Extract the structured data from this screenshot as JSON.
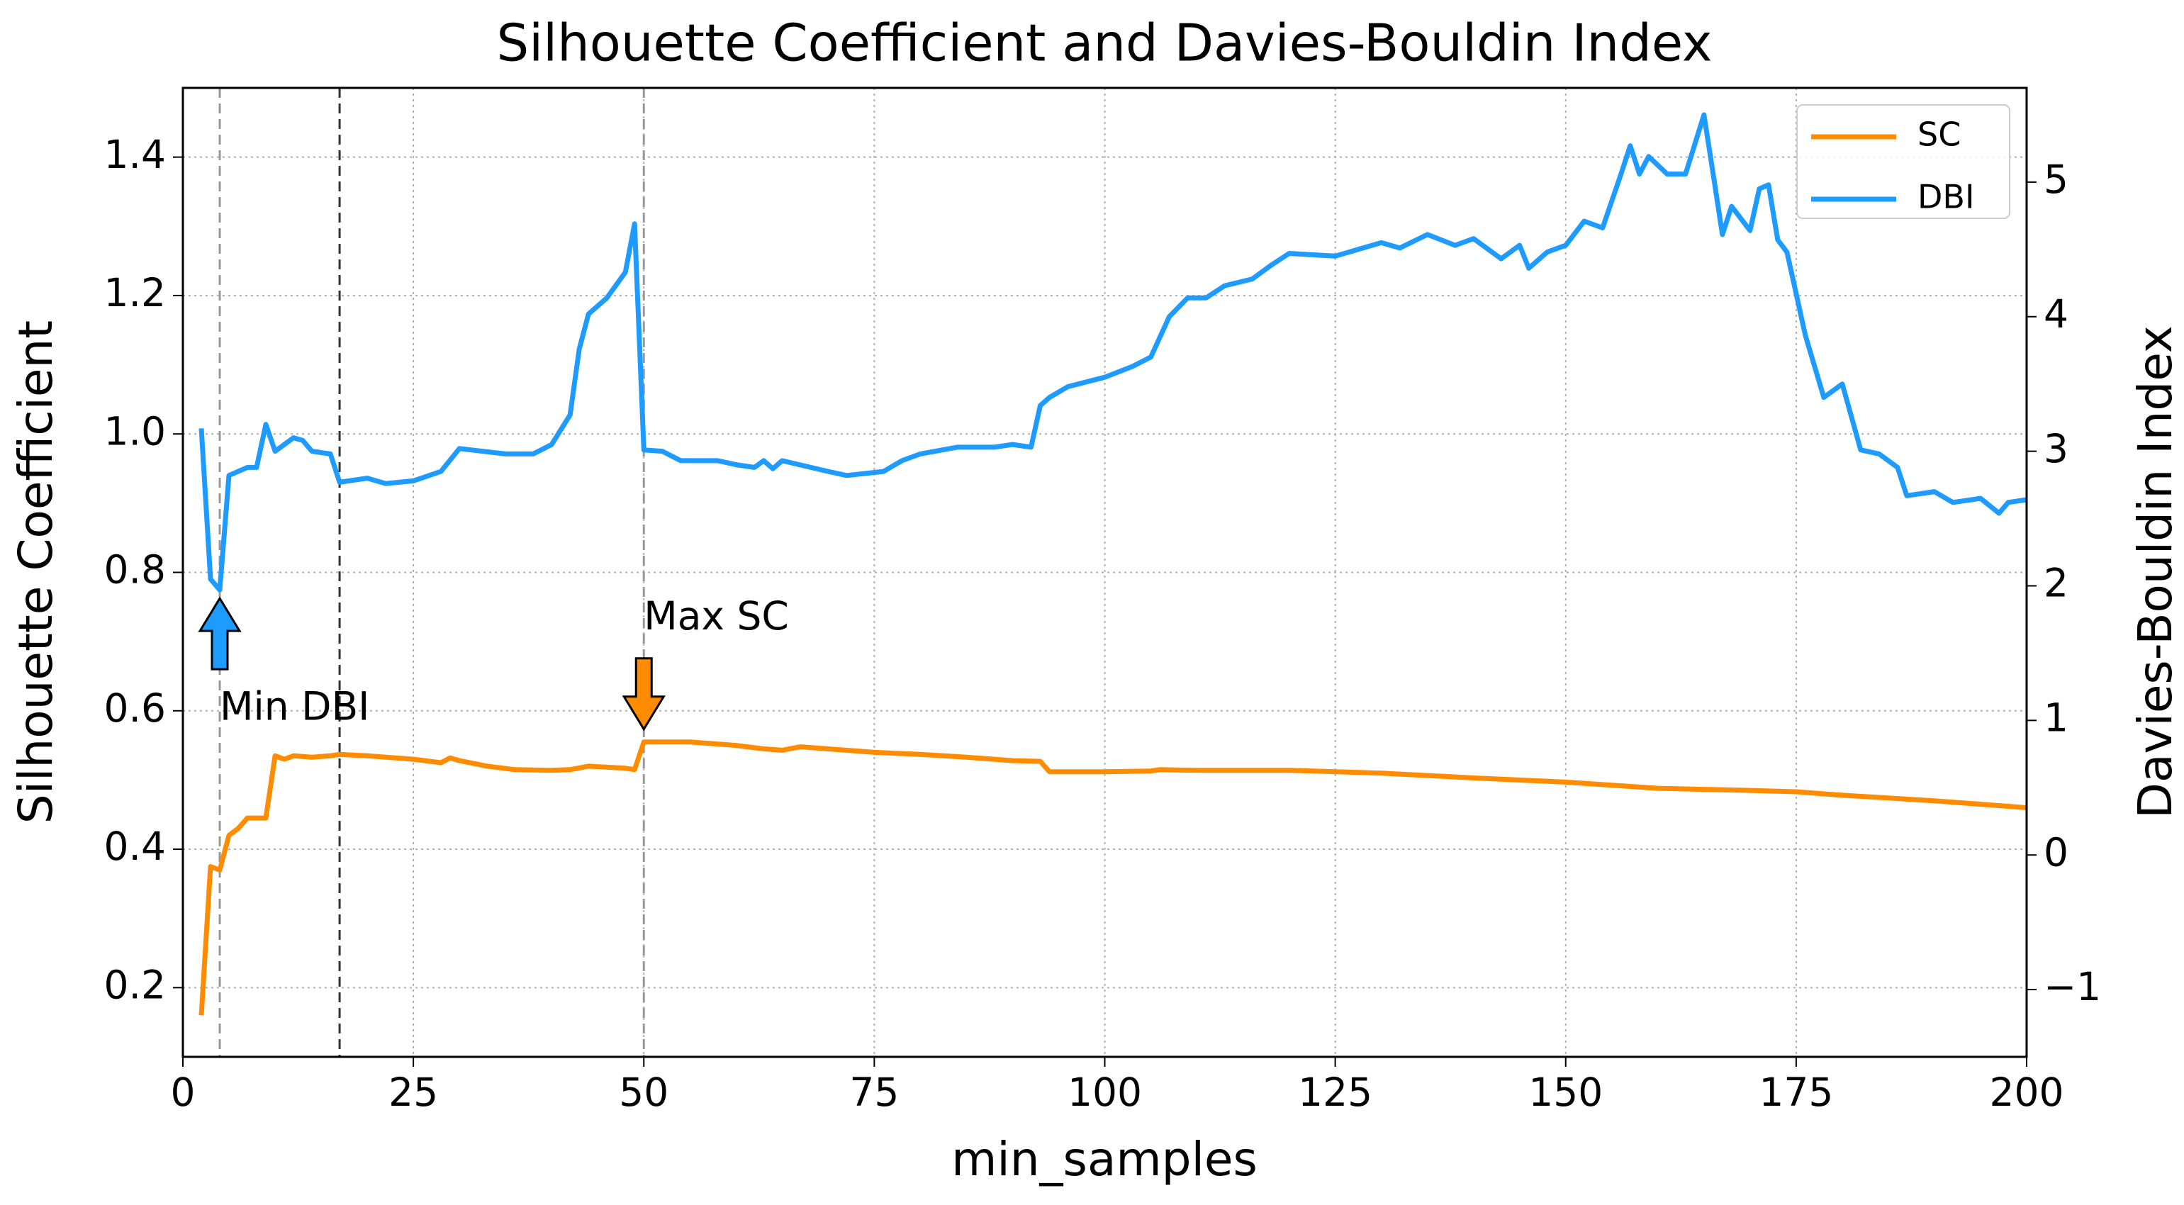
{
  "chart_data": {
    "type": "line",
    "title": "Silhouette Coefficient and Davies-Bouldin Index",
    "x_label": "min_samples",
    "y_label": "Silhouette Coefficient",
    "y2_label": "Davies-Bouldin Index",
    "xlim": [
      0,
      200
    ],
    "xticks": [
      0,
      25,
      50,
      75,
      100,
      125,
      150,
      175,
      200
    ],
    "ylim": [
      0.1,
      1.5
    ],
    "yticks": [
      0.2,
      0.4,
      0.6,
      0.8,
      {
        "value": 1,
        "label": "1.0"
      },
      1.2,
      1.4
    ],
    "y2lim": [
      -1.5,
      5.7
    ],
    "y2ticks": [
      {
        "value": -1,
        "label": "−1"
      },
      0,
      1,
      2,
      3,
      4,
      5
    ],
    "grid": true,
    "legend": "upper right",
    "series": [
      {
        "name": "SC",
        "color": "#ff8c00",
        "axis": "y",
        "x": [
          2,
          3,
          4,
          5,
          6,
          7,
          8,
          9,
          10,
          11,
          12,
          14,
          16,
          17,
          20,
          25,
          28,
          29,
          30,
          33,
          36,
          40,
          42,
          44,
          48,
          49,
          50,
          55,
          60,
          63,
          65,
          67,
          70,
          75,
          80,
          85,
          90,
          93,
          94,
          100,
          105,
          106,
          110,
          120,
          130,
          140,
          150,
          160,
          170,
          175,
          180,
          190,
          200
        ],
        "values": [
          0.16,
          0.375,
          0.37,
          0.42,
          0.43,
          0.445,
          0.445,
          0.445,
          0.535,
          0.53,
          0.535,
          0.533,
          0.535,
          0.537,
          0.535,
          0.53,
          0.525,
          0.532,
          0.528,
          0.52,
          0.515,
          0.514,
          0.515,
          0.52,
          0.517,
          0.515,
          0.555,
          0.555,
          0.55,
          0.545,
          0.543,
          0.548,
          0.545,
          0.54,
          0.537,
          0.533,
          0.528,
          0.527,
          0.512,
          0.512,
          0.513,
          0.515,
          0.514,
          0.514,
          0.51,
          0.503,
          0.497,
          0.488,
          0.485,
          0.483,
          0.478,
          0.47,
          0.46
        ]
      },
      {
        "name": "DBI",
        "color": "#1e9bff",
        "axis": "y2",
        "x": [
          2,
          3,
          4,
          5,
          6,
          7,
          8,
          9,
          10,
          12,
          13,
          14,
          16,
          17,
          20,
          22,
          25,
          28,
          30,
          35,
          38,
          40,
          42,
          43,
          44,
          46,
          48,
          49,
          50,
          52,
          54,
          58,
          60,
          62,
          63,
          64,
          65,
          70,
          72,
          76,
          78,
          80,
          84,
          88,
          90,
          92,
          93,
          94,
          96,
          100,
          103,
          105,
          107,
          109,
          111,
          113,
          116,
          118,
          120,
          125,
          128,
          130,
          132,
          135,
          138,
          140,
          143,
          145,
          146,
          148,
          150,
          152,
          154,
          156,
          157,
          158,
          159,
          161,
          163,
          165,
          166,
          167,
          168,
          170,
          171,
          172,
          173,
          174,
          176,
          178,
          180,
          182,
          184,
          186,
          187,
          190,
          192,
          195,
          197,
          198,
          200
        ],
        "values": [
          3.17,
          2.05,
          1.97,
          2.82,
          2.85,
          2.88,
          2.88,
          3.2,
          3.0,
          3.1,
          3.08,
          3.0,
          2.98,
          2.77,
          2.8,
          2.76,
          2.78,
          2.85,
          3.02,
          2.98,
          2.98,
          3.05,
          3.27,
          3.76,
          4.02,
          4.14,
          4.33,
          4.69,
          3.01,
          3.0,
          2.93,
          2.93,
          2.9,
          2.88,
          2.93,
          2.87,
          2.93,
          2.85,
          2.82,
          2.85,
          2.93,
          2.98,
          3.03,
          3.03,
          3.05,
          3.03,
          3.34,
          3.4,
          3.48,
          3.55,
          3.63,
          3.7,
          4.0,
          4.14,
          4.14,
          4.23,
          4.28,
          4.38,
          4.47,
          4.45,
          4.51,
          4.55,
          4.51,
          4.61,
          4.53,
          4.58,
          4.43,
          4.53,
          4.36,
          4.48,
          4.53,
          4.71,
          4.66,
          5.06,
          5.27,
          5.06,
          5.19,
          5.06,
          5.06,
          5.5,
          5.06,
          4.61,
          4.82,
          4.64,
          4.95,
          4.98,
          4.57,
          4.48,
          3.86,
          3.4,
          3.5,
          3.01,
          2.98,
          2.88,
          2.67,
          2.7,
          2.62,
          2.65,
          2.54,
          2.62,
          2.64
        ]
      }
    ],
    "vlines": [
      {
        "x": 4,
        "color": "#999999"
      },
      {
        "x": 17,
        "color": "#333333"
      },
      {
        "x": 50,
        "color": "#999999"
      }
    ],
    "annotations": [
      {
        "text": "Min DBI",
        "x": 4,
        "series": "DBI",
        "direction": "up"
      },
      {
        "text": "Max SC",
        "x": 50,
        "series": "SC",
        "direction": "down"
      }
    ]
  }
}
